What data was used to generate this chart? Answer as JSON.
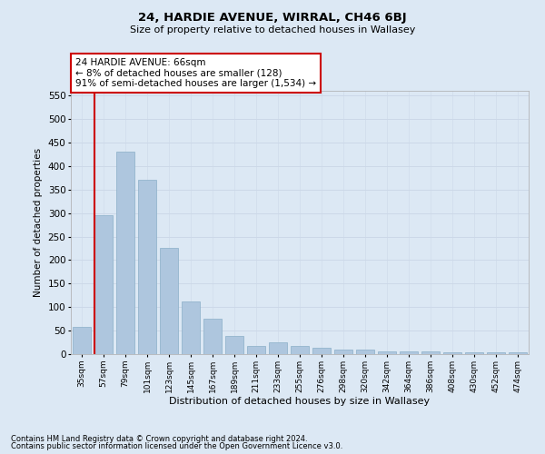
{
  "title": "24, HARDIE AVENUE, WIRRAL, CH46 6BJ",
  "subtitle": "Size of property relative to detached houses in Wallasey",
  "xlabel": "Distribution of detached houses by size in Wallasey",
  "ylabel": "Number of detached properties",
  "categories": [
    "35sqm",
    "57sqm",
    "79sqm",
    "101sqm",
    "123sqm",
    "145sqm",
    "167sqm",
    "189sqm",
    "211sqm",
    "233sqm",
    "255sqm",
    "276sqm",
    "298sqm",
    "320sqm",
    "342sqm",
    "364sqm",
    "386sqm",
    "408sqm",
    "430sqm",
    "452sqm",
    "474sqm"
  ],
  "values": [
    57,
    295,
    430,
    370,
    225,
    112,
    75,
    38,
    17,
    26,
    17,
    13,
    9,
    9,
    6,
    6,
    5,
    4,
    4,
    3,
    4
  ],
  "bar_color": "#aec6de",
  "bar_edge_color": "#8aafc8",
  "vline_color": "#cc0000",
  "annotation_title": "24 HARDIE AVENUE: 66sqm",
  "annotation_line1": "← 8% of detached houses are smaller (128)",
  "annotation_line2": "91% of semi-detached houses are larger (1,534) →",
  "annotation_box_color": "#ffffff",
  "annotation_box_edgecolor": "#cc0000",
  "ylim": [
    0,
    560
  ],
  "yticks": [
    0,
    50,
    100,
    150,
    200,
    250,
    300,
    350,
    400,
    450,
    500,
    550
  ],
  "grid_color": "#ccd8e8",
  "background_color": "#dce8f4",
  "footer1": "Contains HM Land Registry data © Crown copyright and database right 2024.",
  "footer2": "Contains public sector information licensed under the Open Government Licence v3.0."
}
